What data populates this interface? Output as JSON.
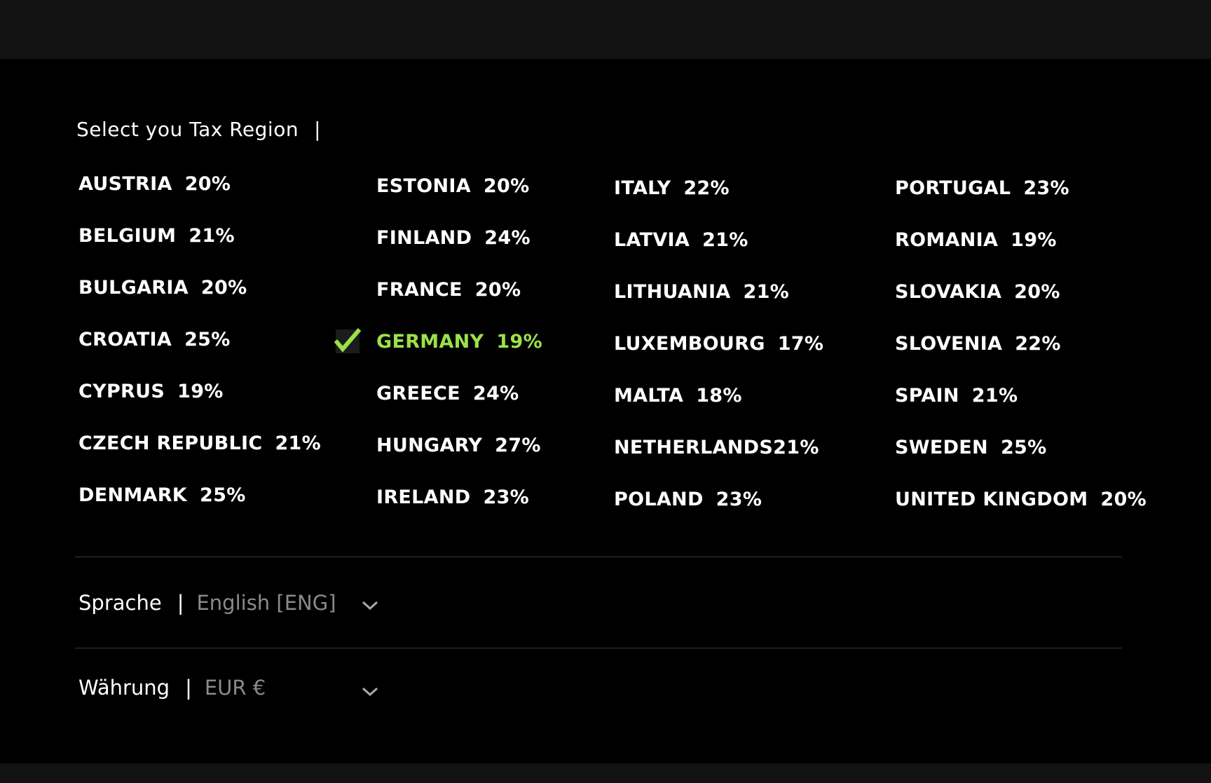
{
  "tax_region": {
    "title": "Select you Tax Region",
    "columns": [
      [
        {
          "name": "AUSTRIA",
          "rate": "20%"
        },
        {
          "name": "BELGIUM",
          "rate": "21%"
        },
        {
          "name": "BULGARIA",
          "rate": "20%"
        },
        {
          "name": "CROATIA",
          "rate": "25%"
        },
        {
          "name": "CYPRUS",
          "rate": "19%"
        },
        {
          "name": "CZECH REPUBLIC",
          "rate": "21%"
        },
        {
          "name": "DENMARK",
          "rate": "25%"
        }
      ],
      [
        {
          "name": "ESTONIA",
          "rate": "20%"
        },
        {
          "name": "FINLAND",
          "rate": "24%"
        },
        {
          "name": "FRANCE",
          "rate": "20%"
        },
        {
          "name": "GERMANY",
          "rate": "19%",
          "selected": true
        },
        {
          "name": "GREECE",
          "rate": "24%"
        },
        {
          "name": "HUNGARY",
          "rate": "27%"
        },
        {
          "name": "IRELAND",
          "rate": "23%"
        }
      ],
      [
        {
          "name": "ITALY",
          "rate": "22%"
        },
        {
          "name": "LATVIA",
          "rate": "21%"
        },
        {
          "name": "LITHUANIA",
          "rate": "21%"
        },
        {
          "name": "LUXEMBOURG",
          "rate": "17%"
        },
        {
          "name": "MALTA",
          "rate": "18%"
        },
        {
          "name": "NETHERLANDS",
          "rate": "21%"
        },
        {
          "name": "POLAND",
          "rate": "23%"
        }
      ],
      [
        {
          "name": "PORTUGAL",
          "rate": "23%"
        },
        {
          "name": "ROMANIA",
          "rate": "19%"
        },
        {
          "name": "SLOVAKIA",
          "rate": "20%"
        },
        {
          "name": "SLOVENIA",
          "rate": "22%"
        },
        {
          "name": "SPAIN",
          "rate": "21%"
        },
        {
          "name": "SWEDEN",
          "rate": "25%"
        },
        {
          "name": "UNITED KINGDOM",
          "rate": "20%"
        }
      ]
    ]
  },
  "language": {
    "label": "Sprache",
    "value": "English [ENG]"
  },
  "currency": {
    "label": "Währung",
    "value": "EUR €"
  }
}
